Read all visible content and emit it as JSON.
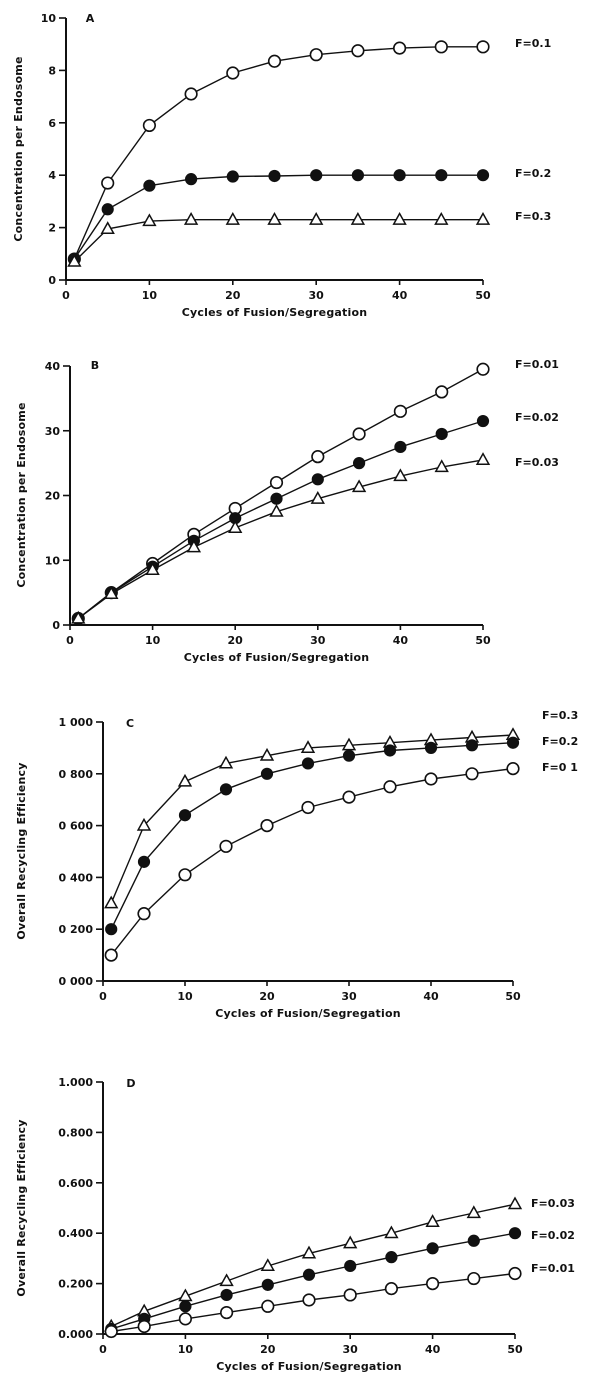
{
  "chart_data": [
    {
      "type": "line",
      "panel": "A",
      "xlabel": "Cycles of Fusion/Segregation",
      "ylabel": "Concentration per Endosome",
      "xlim": [
        0,
        50
      ],
      "ylim": [
        0,
        10
      ],
      "x_ticks": [
        "0",
        "10",
        "20",
        "30",
        "40",
        "50"
      ],
      "y_ticks": [
        "0",
        "2",
        "4",
        "6",
        "8",
        "10"
      ],
      "grid": false,
      "x": [
        1,
        5,
        10,
        15,
        20,
        25,
        30,
        35,
        40,
        45,
        50
      ],
      "series": [
        {
          "name": "F=0.1",
          "marker": "circle-open",
          "values": [
            0.8,
            3.7,
            5.9,
            7.1,
            7.9,
            8.35,
            8.6,
            8.75,
            8.85,
            8.9,
            8.9
          ]
        },
        {
          "name": "F=0.2",
          "marker": "circle-filled",
          "values": [
            0.8,
            2.7,
            3.6,
            3.85,
            3.95,
            3.97,
            4.0,
            4.0,
            4.0,
            4.0,
            4.0
          ]
        },
        {
          "name": "F=0.3",
          "marker": "triangle-open",
          "values": [
            0.7,
            1.95,
            2.25,
            2.3,
            2.3,
            2.3,
            2.3,
            2.3,
            2.3,
            2.3,
            2.3
          ]
        }
      ]
    },
    {
      "type": "line",
      "panel": "B",
      "xlabel": "Cycles of Fusion/Segregation",
      "ylabel": "Concentration per Endosome",
      "xlim": [
        0,
        50
      ],
      "ylim": [
        0,
        40
      ],
      "x_ticks": [
        "0",
        "10",
        "20",
        "30",
        "40",
        "50"
      ],
      "y_ticks": [
        "0",
        "10",
        "20",
        "30",
        "40"
      ],
      "grid": false,
      "x": [
        1,
        5,
        10,
        15,
        20,
        25,
        30,
        35,
        40,
        45,
        50
      ],
      "series": [
        {
          "name": "F=0.01",
          "marker": "circle-open",
          "values": [
            1.0,
            5.0,
            9.5,
            14.0,
            18.0,
            22.0,
            26.0,
            29.5,
            33.0,
            36.0,
            39.5
          ]
        },
        {
          "name": "F=0.02",
          "marker": "circle-filled",
          "values": [
            1.0,
            5.0,
            9.0,
            13.0,
            16.5,
            19.5,
            22.5,
            25.0,
            27.5,
            29.5,
            31.5
          ]
        },
        {
          "name": "F=0.03",
          "marker": "triangle-open",
          "values": [
            1.0,
            4.8,
            8.5,
            12.0,
            15.0,
            17.5,
            19.5,
            21.3,
            23.0,
            24.4,
            25.5
          ]
        }
      ]
    },
    {
      "type": "line",
      "panel": "C",
      "xlabel": "Cycles of Fusion/Segregation",
      "ylabel": "Overall Recycling Efficiency",
      "xlim": [
        0,
        50
      ],
      "ylim": [
        0,
        1
      ],
      "x_ticks": [
        "0",
        "10",
        "20",
        "30",
        "40",
        "50"
      ],
      "y_ticks": [
        "0 000",
        "0 200",
        "0 400",
        "0 600",
        "0 800",
        "1 000"
      ],
      "grid": false,
      "x": [
        1,
        5,
        10,
        15,
        20,
        25,
        30,
        35,
        40,
        45,
        50
      ],
      "series": [
        {
          "name": "F=0.3",
          "marker": "triangle-open",
          "values": [
            0.3,
            0.6,
            0.77,
            0.84,
            0.87,
            0.9,
            0.91,
            0.92,
            0.93,
            0.94,
            0.95
          ]
        },
        {
          "name": "F=0.2",
          "marker": "circle-filled",
          "values": [
            0.2,
            0.46,
            0.64,
            0.74,
            0.8,
            0.84,
            0.87,
            0.89,
            0.9,
            0.91,
            0.92
          ]
        },
        {
          "name": "F=0 1",
          "marker": "circle-open",
          "values": [
            0.1,
            0.26,
            0.41,
            0.52,
            0.6,
            0.67,
            0.71,
            0.75,
            0.78,
            0.8,
            0.82
          ]
        }
      ]
    },
    {
      "type": "line",
      "panel": "D",
      "xlabel": "Cycles of Fusion/Segregation",
      "ylabel": "Overall Recycling Efficiency",
      "xlim": [
        0,
        50
      ],
      "ylim": [
        0,
        1
      ],
      "x_ticks": [
        "0",
        "10",
        "20",
        "30",
        "40",
        "50"
      ],
      "y_ticks": [
        "0.000",
        "0.200",
        "0.400",
        "0.600",
        "0.800",
        "1.000"
      ],
      "grid": false,
      "x": [
        1,
        5,
        10,
        15,
        20,
        25,
        30,
        35,
        40,
        45,
        50
      ],
      "series": [
        {
          "name": "F=0.03",
          "marker": "triangle-open",
          "values": [
            0.03,
            0.09,
            0.15,
            0.21,
            0.27,
            0.32,
            0.36,
            0.4,
            0.445,
            0.48,
            0.515
          ]
        },
        {
          "name": "F=0.02",
          "marker": "circle-filled",
          "values": [
            0.02,
            0.06,
            0.11,
            0.155,
            0.195,
            0.235,
            0.27,
            0.305,
            0.34,
            0.37,
            0.4
          ]
        },
        {
          "name": "F=0.01",
          "marker": "circle-open",
          "values": [
            0.01,
            0.03,
            0.06,
            0.085,
            0.11,
            0.135,
            0.155,
            0.18,
            0.2,
            0.22,
            0.24
          ]
        }
      ]
    }
  ]
}
